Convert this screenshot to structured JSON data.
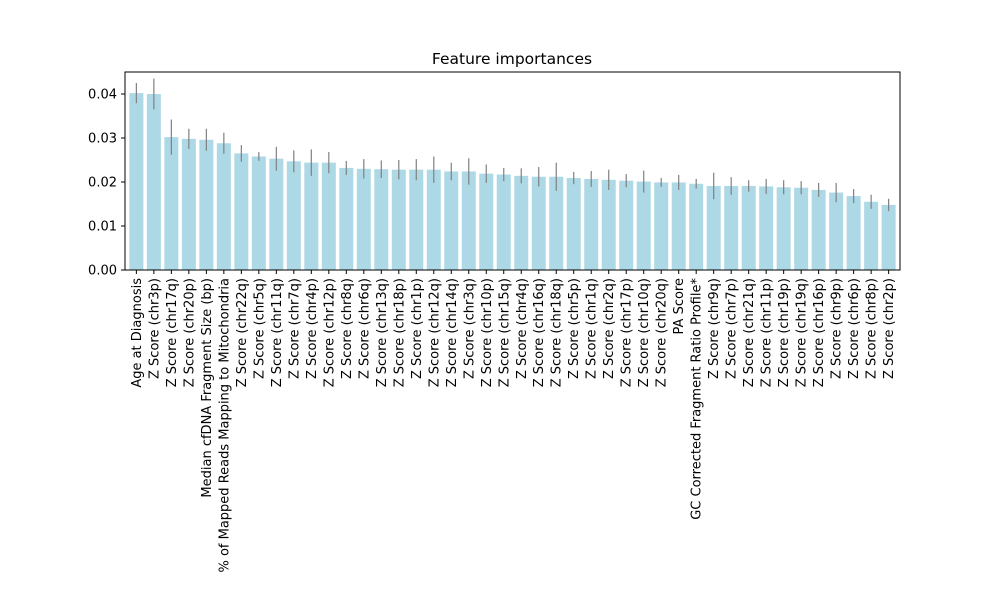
{
  "chart_data": {
    "type": "bar",
    "title": "Feature importances",
    "xlabel": "",
    "ylabel": "",
    "ylim": [
      0,
      0.045
    ],
    "yticks": [
      0.0,
      0.01,
      0.02,
      0.03,
      0.04
    ],
    "ytick_labels": [
      "0.00",
      "0.01",
      "0.02",
      "0.03",
      "0.04"
    ],
    "categories": [
      "Age at Diagnosis",
      "Z Score (chr3p)",
      "Z Score (chr17q)",
      "Z Score (chr20p)",
      "Median cfDNA Fragment Size (bp)",
      "% of Mapped Reads Mapping to Mitochondria",
      "Z Score (chr22q)",
      "Z Score (chr5q)",
      "Z Score (chr11q)",
      "Z Score (chr7q)",
      "Z Score (chr4p)",
      "Z Score (chr12p)",
      "Z Score (chr8q)",
      "Z Score (chr6q)",
      "Z Score (chr13q)",
      "Z Score (chr18p)",
      "Z Score (chr1p)",
      "Z Score (chr12q)",
      "Z Score (chr14q)",
      "Z Score (chr3q)",
      "Z Score (chr10p)",
      "Z Score (chr15q)",
      "Z Score (chr4q)",
      "Z Score (chr16q)",
      "Z Score (chr18q)",
      "Z Score (chr5p)",
      "Z Score (chr1q)",
      "Z Score (chr2q)",
      "Z Score (chr17p)",
      "Z Score (chr10q)",
      "Z Score (chr20q)",
      "PA Score",
      "GC Corrected Fragment Ratio Profile*",
      "Z Score (chr9q)",
      "Z Score (chr7p)",
      "Z Score (chr21q)",
      "Z Score (chr11p)",
      "Z Score (chr19p)",
      "Z Score (chr19q)",
      "Z Score (chr16p)",
      "Z Score (chr9p)",
      "Z Score (chr6p)",
      "Z Score (chr8p)",
      "Z Score (chr2p)"
    ],
    "values": [
      0.0402,
      0.04,
      0.0302,
      0.0298,
      0.0296,
      0.0288,
      0.0265,
      0.0258,
      0.0253,
      0.0247,
      0.0244,
      0.0244,
      0.0232,
      0.023,
      0.0229,
      0.0228,
      0.0228,
      0.0228,
      0.0224,
      0.0224,
      0.0219,
      0.0217,
      0.0214,
      0.0212,
      0.0212,
      0.0209,
      0.0207,
      0.0205,
      0.0203,
      0.0201,
      0.0199,
      0.0199,
      0.0196,
      0.0191,
      0.0191,
      0.0191,
      0.019,
      0.0188,
      0.0187,
      0.0182,
      0.0176,
      0.0168,
      0.0155,
      0.0148
    ],
    "errors": [
      0.0023,
      0.0035,
      0.004,
      0.0023,
      0.0025,
      0.0024,
      0.0019,
      0.001,
      0.0027,
      0.0025,
      0.003,
      0.0024,
      0.0016,
      0.0022,
      0.002,
      0.0022,
      0.0024,
      0.003,
      0.002,
      0.003,
      0.0021,
      0.0015,
      0.0017,
      0.0022,
      0.0032,
      0.0014,
      0.0018,
      0.0023,
      0.0015,
      0.0025,
      0.001,
      0.0017,
      0.0011,
      0.003,
      0.002,
      0.0013,
      0.0017,
      0.0016,
      0.0015,
      0.0016,
      0.0022,
      0.0016,
      0.0016,
      0.0014
    ],
    "grid": false,
    "legend": "none",
    "colors": {
      "bar": "#add8e6",
      "error_bar": "#808080",
      "axis": "#000000"
    }
  }
}
